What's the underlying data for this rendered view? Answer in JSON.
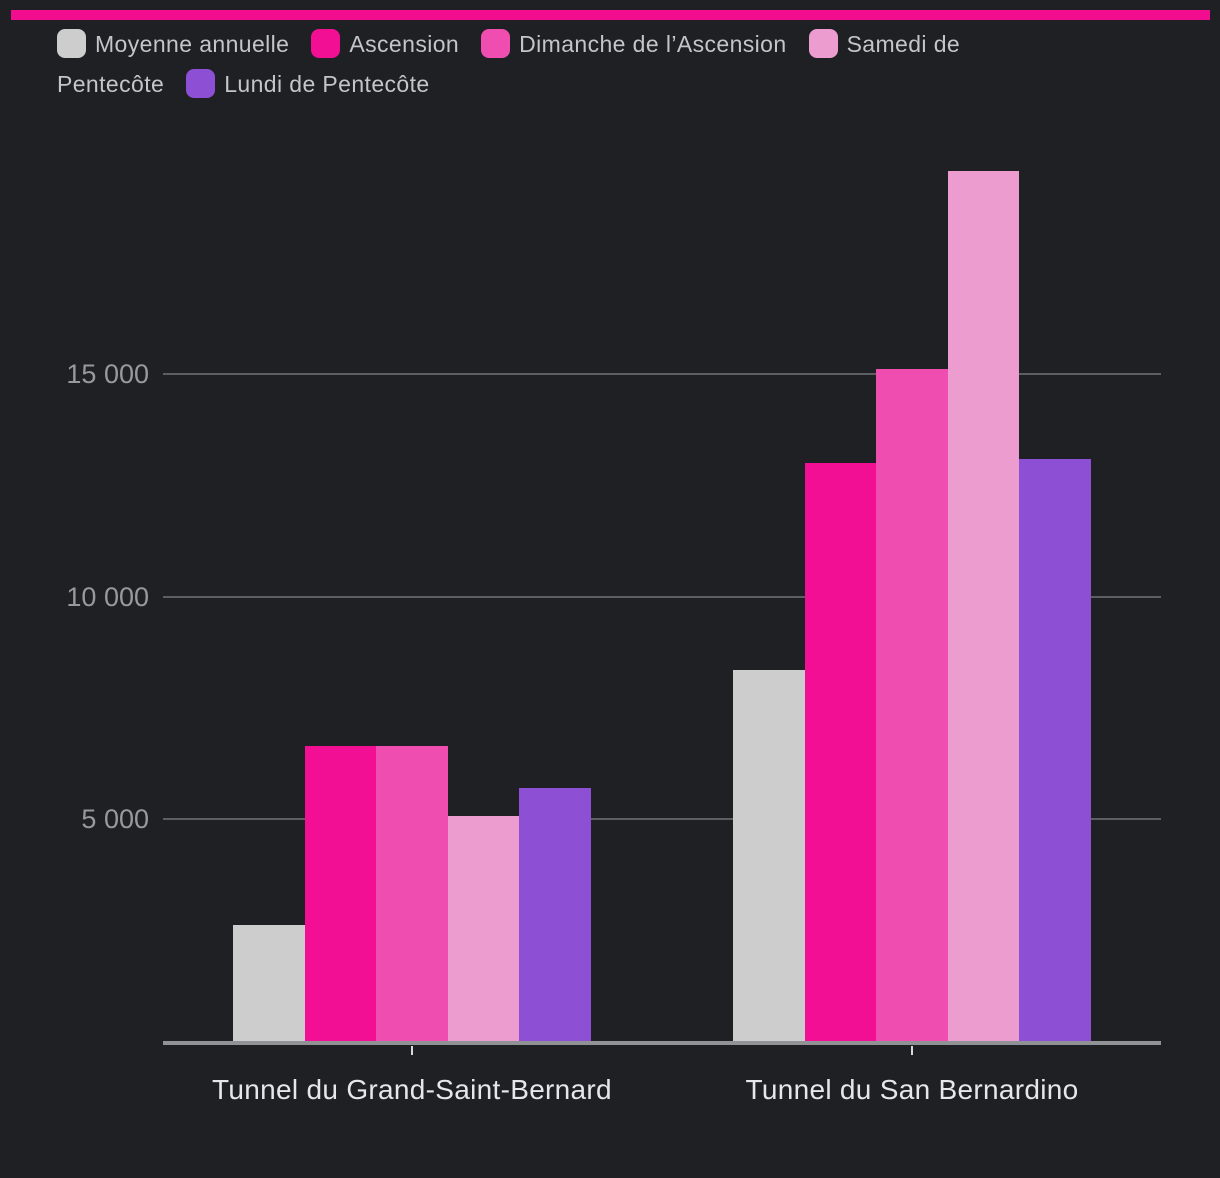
{
  "colors": {
    "background": "#1E2023",
    "accent_strip": "#F20D8E",
    "gridline": "#5C5E62",
    "axis_line": "#909296",
    "axis_tick": "#D7D8DA",
    "legend_text": "#C2C5C9",
    "ytick_text": "#97999D",
    "xcat_text": "#E5E7E9"
  },
  "legend": {
    "items": [
      {
        "label": "Moyenne annuelle",
        "color": "#CDCDCD"
      },
      {
        "label": "Ascension",
        "color": "#F20F93"
      },
      {
        "label": "Dimanche de l’Ascension",
        "color": "#EF4EB0"
      },
      {
        "label": "Samedi de Pentecôte",
        "color": "#EC9CCE"
      },
      {
        "label": "Lundi de Pentecôte",
        "color": "#8D4FD3"
      }
    ]
  },
  "chart_data": {
    "type": "bar",
    "title": "",
    "xlabel": "",
    "ylabel": "",
    "categories": [
      "Tunnel du Grand-Saint-Bernard",
      "Tunnel du San Bernardino"
    ],
    "series": [
      {
        "name": "Moyenne annuelle",
        "color": "#CDCDCD",
        "values": [
          2620,
          8350
        ]
      },
      {
        "name": "Ascension",
        "color": "#F20F93",
        "values": [
          6650,
          13000
        ]
      },
      {
        "name": "Dimanche de l’Ascension",
        "color": "#EF4EB0",
        "values": [
          6650,
          15100
        ]
      },
      {
        "name": "Samedi de Pentecôte",
        "color": "#EC9CCE",
        "values": [
          5070,
          19550
        ]
      },
      {
        "name": "Lundi de Pentecôte",
        "color": "#8D4FD3",
        "values": [
          5700,
          13090
        ]
      }
    ],
    "yticks": [
      5000,
      10000,
      15000
    ],
    "ytick_labels": [
      "5 000",
      "10 000",
      "15 000"
    ],
    "ylim": [
      0,
      20000
    ],
    "grid": "horizontal",
    "legend_position": "top"
  }
}
